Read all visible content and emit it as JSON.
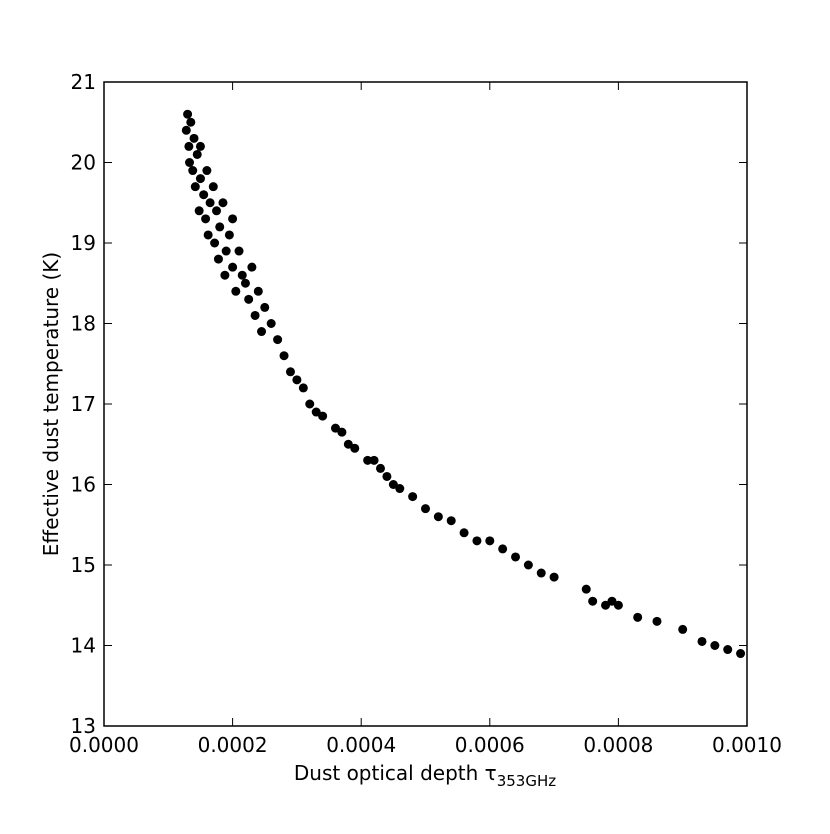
{
  "chart_data": {
    "type": "scatter",
    "xlabel": "Dust optical depth τ",
    "xlabel_sub": "353GHz",
    "ylabel": "Effective dust temperature (K)",
    "color": "#000000",
    "x": [
      0.00013,
      0.000128,
      0.000132,
      0.000135,
      0.00014,
      0.000133,
      0.000138,
      0.000145,
      0.00015,
      0.000142,
      0.00015,
      0.000155,
      0.00016,
      0.000148,
      0.000158,
      0.000165,
      0.00017,
      0.000175,
      0.000162,
      0.000172,
      0.00018,
      0.000185,
      0.000178,
      0.00019,
      0.000195,
      0.0002,
      0.000188,
      0.0002,
      0.00021,
      0.000215,
      0.000205,
      0.00022,
      0.00023,
      0.000225,
      0.00024,
      0.000235,
      0.00025,
      0.000245,
      0.00026,
      0.00027,
      0.00028,
      0.00029,
      0.0003,
      0.00031,
      0.00032,
      0.00033,
      0.00034,
      0.00036,
      0.00037,
      0.00038,
      0.00039,
      0.00041,
      0.00042,
      0.00043,
      0.00044,
      0.00045,
      0.00046,
      0.00048,
      0.0005,
      0.00052,
      0.00054,
      0.00056,
      0.00058,
      0.0006,
      0.00062,
      0.00064,
      0.00066,
      0.00068,
      0.0007,
      0.00075,
      0.00076,
      0.00078,
      0.00079,
      0.0008,
      0.00083,
      0.00086,
      0.0009,
      0.00093,
      0.00095,
      0.00097,
      0.00099
    ],
    "values": [
      20.6,
      20.4,
      20.2,
      20.5,
      20.3,
      20.0,
      19.9,
      20.1,
      20.2,
      19.7,
      19.8,
      19.6,
      19.9,
      19.4,
      19.3,
      19.5,
      19.7,
      19.4,
      19.1,
      19.0,
      19.2,
      19.5,
      18.8,
      18.9,
      19.1,
      19.3,
      18.6,
      18.7,
      18.9,
      18.6,
      18.4,
      18.5,
      18.7,
      18.3,
      18.4,
      18.1,
      18.2,
      17.9,
      18.0,
      17.8,
      17.6,
      17.4,
      17.3,
      17.2,
      17.0,
      16.9,
      16.85,
      16.7,
      16.65,
      16.5,
      16.45,
      16.3,
      16.3,
      16.2,
      16.1,
      16.0,
      15.95,
      15.85,
      15.7,
      15.6,
      15.55,
      15.4,
      15.3,
      15.3,
      15.2,
      15.1,
      15.0,
      14.9,
      14.85,
      14.7,
      14.55,
      14.5,
      14.55,
      14.5,
      14.35,
      14.3,
      14.2,
      14.05,
      14.0,
      13.95,
      13.9
    ],
    "xlim": [
      0,
      0.001
    ],
    "xticks": [
      {
        "value": 0,
        "label": "0.0000"
      },
      {
        "value": 0.0002,
        "label": "0.0002"
      },
      {
        "value": 0.0004,
        "label": "0.0004"
      },
      {
        "value": 0.0006,
        "label": "0.0006"
      },
      {
        "value": 0.0008,
        "label": "0.0008"
      },
      {
        "value": 0.001,
        "label": "0.0010"
      }
    ],
    "ylim": [
      13,
      21
    ],
    "yticks": [
      13,
      14,
      15,
      16,
      17,
      18,
      19,
      20,
      21
    ]
  }
}
